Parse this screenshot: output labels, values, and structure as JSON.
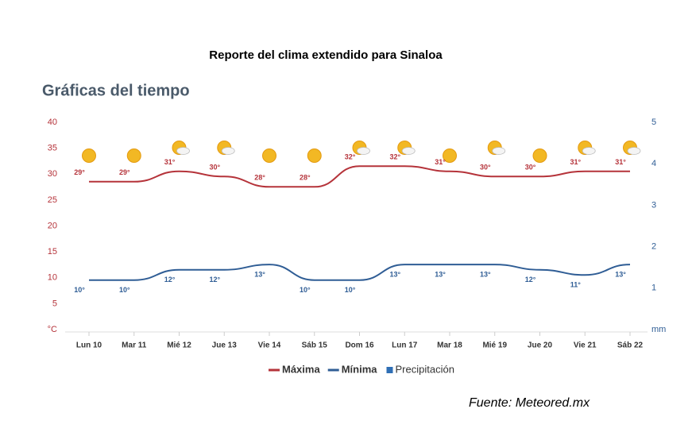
{
  "chart_data": {
    "type": "line",
    "title": "Reporte del clima extendido para Sinaloa",
    "subtitle": "Gráficas del tiempo",
    "source": "Fuente: Meteored.mx",
    "categories": [
      "Lun 10",
      "Mar 11",
      "Mié 12",
      "Jue 13",
      "Vie 14",
      "Sáb 15",
      "Dom 16",
      "Lun 17",
      "Mar 18",
      "Mié 19",
      "Jue 20",
      "Vie 21",
      "Sáb 22"
    ],
    "series": [
      {
        "name": "Máxima",
        "color": "#b5333a",
        "values": [
          29,
          29,
          31,
          30,
          28,
          28,
          32,
          32,
          31,
          30,
          30,
          31,
          31
        ],
        "value_labels": [
          "29°",
          "29°",
          "31°",
          "30°",
          "28°",
          "28°",
          "32°",
          "32°",
          "31°",
          "30°",
          "30°",
          "31°",
          "31°"
        ]
      },
      {
        "name": "Mínima",
        "color": "#2f5d95",
        "values": [
          10,
          10,
          12,
          12,
          13,
          10,
          10,
          13,
          13,
          13,
          12,
          11,
          13
        ],
        "value_labels": [
          "10°",
          "10°",
          "12°",
          "12°",
          "13°",
          "10°",
          "10°",
          "13°",
          "13°",
          "13°",
          "12°",
          "11°",
          "13°"
        ]
      },
      {
        "name": "Precipitación",
        "color": "#2f6fb5",
        "axis": "y2",
        "values": [
          null,
          null,
          null,
          null,
          null,
          null,
          null,
          null,
          null,
          null,
          null,
          null,
          null
        ]
      }
    ],
    "ylim": [
      0,
      40
    ],
    "yticks": [
      {
        "value": 0,
        "label": "°C"
      },
      5,
      10,
      15,
      20,
      25,
      30,
      35,
      40
    ],
    "y2lim": [
      0,
      5
    ],
    "y2ticks": [
      {
        "value": 0,
        "label": "mm"
      },
      1,
      2,
      3,
      4,
      5
    ],
    "grid": false
  }
}
